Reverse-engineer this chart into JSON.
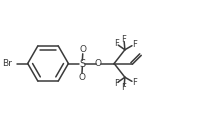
{
  "bg_color": "#ffffff",
  "line_color": "#3a3a3a",
  "text_color": "#3a3a3a",
  "line_width": 1.1,
  "font_size": 6.5,
  "figsize": [
    2.07,
    1.27
  ],
  "dpi": 100,
  "xlim": [
    0,
    10.5
  ],
  "ylim": [
    0,
    6.3
  ]
}
